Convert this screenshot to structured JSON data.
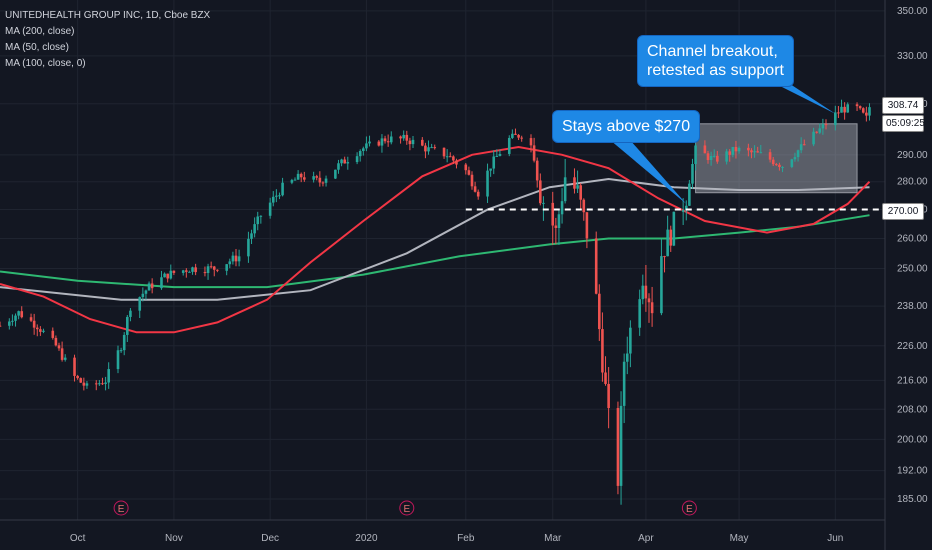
{
  "header": {
    "symbol_line": "UNITEDHEALTH GROUP INC, 1D, Cboe BZX",
    "ma_lines": [
      "MA (200, close)",
      "MA (50, close)",
      "MA (100, close, 0)"
    ]
  },
  "annotations": {
    "callout_breakout": [
      "Channel breakout,",
      "retested as support"
    ],
    "callout_stays": "Stays above $270",
    "earnings_label": "E"
  },
  "price_scale": {
    "last_price": "308.74",
    "countdown": "05:09:25",
    "level": "270.00"
  },
  "colors": {
    "background": "#131722",
    "up": "#26a69a",
    "down": "#ef5350",
    "ma50": "#f23645",
    "ma100": "#b2b5be",
    "ma200": "#2eb872",
    "callout": "#1e88e5"
  },
  "chart_data": {
    "type": "candlestick",
    "title": "UNITEDHEALTH GROUP INC, 1D, Cboe BZX",
    "y_ticks": [
      185,
      192,
      200,
      208,
      216,
      226,
      238,
      250,
      260,
      270,
      280,
      290,
      310,
      330,
      350
    ],
    "y_tick_labels": [
      "185.00",
      "192.00",
      "200.00",
      "208.00",
      "216.00",
      "226.00",
      "238.00",
      "250.00",
      "260.00",
      "270.00",
      "280.00",
      "290.00",
      "310.00",
      "330.00",
      "350.00"
    ],
    "ylim": [
      180,
      355
    ],
    "y_scale": "log",
    "x_months": [
      {
        "label": "Oct",
        "date": "2019-10-01"
      },
      {
        "label": "Nov",
        "date": "2019-11-01"
      },
      {
        "label": "Dec",
        "date": "2019-12-02"
      },
      {
        "label": "2020",
        "date": "2020-01-02"
      },
      {
        "label": "Feb",
        "date": "2020-02-03"
      },
      {
        "label": "Mar",
        "date": "2020-03-02"
      },
      {
        "label": "Apr",
        "date": "2020-04-01"
      },
      {
        "label": "May",
        "date": "2020-05-01"
      },
      {
        "label": "Jun",
        "date": "2020-06-01"
      }
    ],
    "xlim": [
      "2019-09-06",
      "2020-06-17"
    ],
    "earnings_dates": [
      "2019-10-15",
      "2020-01-15",
      "2020-04-15"
    ],
    "price_path": [
      [
        "2019-09-06",
        232
      ],
      [
        "2019-09-12",
        236
      ],
      [
        "2019-09-18",
        232
      ],
      [
        "2019-09-24",
        226
      ],
      [
        "2019-09-30",
        217
      ],
      [
        "2019-10-04",
        214
      ],
      [
        "2019-10-10",
        216
      ],
      [
        "2019-10-15",
        226
      ],
      [
        "2019-10-18",
        238
      ],
      [
        "2019-10-24",
        244
      ],
      [
        "2019-10-30",
        248
      ],
      [
        "2019-11-06",
        250
      ],
      [
        "2019-11-14",
        250
      ],
      [
        "2019-11-22",
        254
      ],
      [
        "2019-11-29",
        268
      ],
      [
        "2019-12-06",
        278
      ],
      [
        "2019-12-12",
        282
      ],
      [
        "2019-12-18",
        280
      ],
      [
        "2019-12-24",
        286
      ],
      [
        "2019-12-31",
        292
      ],
      [
        "2020-01-08",
        296
      ],
      [
        "2020-01-15",
        296
      ],
      [
        "2020-01-22",
        292
      ],
      [
        "2020-01-28",
        290
      ],
      [
        "2020-02-03",
        284
      ],
      [
        "2020-02-07",
        276
      ],
      [
        "2020-02-11",
        286
      ],
      [
        "2020-02-17",
        296
      ],
      [
        "2020-02-21",
        298
      ],
      [
        "2020-02-25",
        292
      ],
      [
        "2020-02-27",
        276
      ],
      [
        "2020-03-03",
        262
      ],
      [
        "2020-03-06",
        282
      ],
      [
        "2020-03-10",
        276
      ],
      [
        "2020-03-13",
        262
      ],
      [
        "2020-03-16",
        240
      ],
      [
        "2020-03-18",
        222
      ],
      [
        "2020-03-20",
        205
      ],
      [
        "2020-03-23",
        190
      ],
      [
        "2020-03-25",
        222
      ],
      [
        "2020-03-31",
        248
      ],
      [
        "2020-04-03",
        238
      ],
      [
        "2020-04-06",
        255
      ],
      [
        "2020-04-09",
        262
      ],
      [
        "2020-04-14",
        275
      ],
      [
        "2020-04-17",
        292
      ],
      [
        "2020-04-23",
        288
      ],
      [
        "2020-04-30",
        292
      ],
      [
        "2020-05-08",
        290
      ],
      [
        "2020-05-15",
        286
      ],
      [
        "2020-05-22",
        294
      ],
      [
        "2020-05-29",
        302
      ],
      [
        "2020-06-03",
        308
      ],
      [
        "2020-06-08",
        308
      ],
      [
        "2020-06-11",
        304
      ],
      [
        "2020-06-12",
        308.74
      ]
    ],
    "ma50": [
      [
        "2019-09-06",
        245
      ],
      [
        "2019-09-20",
        241
      ],
      [
        "2019-10-05",
        234
      ],
      [
        "2019-10-20",
        230
      ],
      [
        "2019-11-01",
        230
      ],
      [
        "2019-11-15",
        233
      ],
      [
        "2019-12-01",
        240
      ],
      [
        "2019-12-15",
        252
      ],
      [
        "2020-01-01",
        266
      ],
      [
        "2020-01-20",
        282
      ],
      [
        "2020-02-05",
        290
      ],
      [
        "2020-02-20",
        293
      ],
      [
        "2020-03-05",
        290
      ],
      [
        "2020-03-20",
        285
      ],
      [
        "2020-04-05",
        274
      ],
      [
        "2020-04-20",
        266
      ],
      [
        "2020-05-10",
        262
      ],
      [
        "2020-05-25",
        265
      ],
      [
        "2020-06-05",
        272
      ],
      [
        "2020-06-12",
        280
      ]
    ],
    "ma100": [
      [
        "2019-09-06",
        244
      ],
      [
        "2019-10-15",
        240
      ],
      [
        "2019-11-15",
        240
      ],
      [
        "2019-12-15",
        243
      ],
      [
        "2020-01-15",
        255
      ],
      [
        "2020-02-10",
        270
      ],
      [
        "2020-03-01",
        278
      ],
      [
        "2020-03-20",
        281
      ],
      [
        "2020-04-10",
        278
      ],
      [
        "2020-05-01",
        277
      ],
      [
        "2020-05-20",
        277
      ],
      [
        "2020-06-12",
        278
      ]
    ],
    "ma200": [
      [
        "2019-09-06",
        249
      ],
      [
        "2019-10-01",
        246
      ],
      [
        "2019-11-01",
        244
      ],
      [
        "2019-12-01",
        244
      ],
      [
        "2020-01-01",
        248
      ],
      [
        "2020-02-01",
        254
      ],
      [
        "2020-03-01",
        258
      ],
      [
        "2020-03-20",
        260
      ],
      [
        "2020-04-10",
        260
      ],
      [
        "2020-05-01",
        262
      ],
      [
        "2020-05-20",
        264
      ],
      [
        "2020-06-12",
        268
      ]
    ],
    "support_level": 270,
    "channel": {
      "from": "2020-04-17",
      "to": "2020-06-08",
      "low": 276,
      "high": 302
    }
  }
}
